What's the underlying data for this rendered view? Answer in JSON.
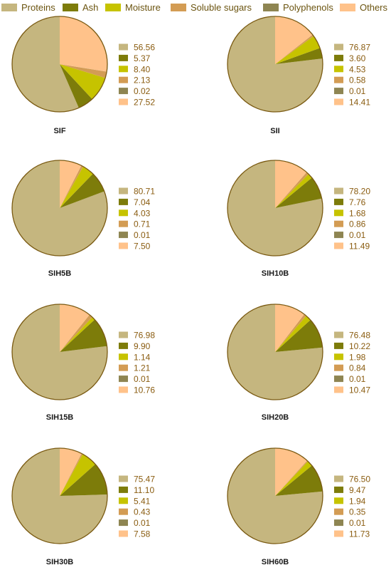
{
  "legend": [
    {
      "name": "Proteins",
      "color": "#c5b67f"
    },
    {
      "name": "Ash",
      "color": "#7d7c0a"
    },
    {
      "name": "Moisture",
      "color": "#c6c300"
    },
    {
      "name": "Soluble sugars",
      "color": "#d39c54"
    },
    {
      "name": "Polyphenols",
      "color": "#8e8552"
    },
    {
      "name": "Others",
      "color": "#ffc28a"
    }
  ],
  "chart_data": [
    {
      "type": "pie",
      "title": "SIF",
      "categories": [
        "Proteins",
        "Ash",
        "Moisture",
        "Soluble sugars",
        "Polyphenols",
        "Others"
      ],
      "values": [
        56.56,
        5.37,
        8.4,
        2.13,
        0.02,
        27.52
      ],
      "labels": [
        "56.56",
        "5.37",
        "8.40",
        "2.13",
        "0.02",
        "27.52"
      ]
    },
    {
      "type": "pie",
      "title": "SII",
      "categories": [
        "Proteins",
        "Ash",
        "Moisture",
        "Soluble sugars",
        "Polyphenols",
        "Others"
      ],
      "values": [
        76.87,
        3.6,
        4.53,
        0.58,
        0.01,
        14.41
      ],
      "labels": [
        "76.87",
        "3.60",
        "4.53",
        "0.58",
        "0.01",
        "14.41"
      ]
    },
    {
      "type": "pie",
      "title": "SIH5B",
      "categories": [
        "Proteins",
        "Ash",
        "Moisture",
        "Soluble sugars",
        "Polyphenols",
        "Others"
      ],
      "values": [
        80.71,
        7.04,
        4.03,
        0.71,
        0.01,
        7.5
      ],
      "labels": [
        "80.71",
        "7.04",
        "4.03",
        "0.71",
        "0.01",
        "7.50"
      ]
    },
    {
      "type": "pie",
      "title": "SIH10B",
      "categories": [
        "Proteins",
        "Ash",
        "Moisture",
        "Soluble sugars",
        "Polyphenols",
        "Others"
      ],
      "values": [
        78.2,
        7.76,
        1.68,
        0.86,
        0.01,
        11.49
      ],
      "labels": [
        "78.20",
        "7.76",
        "1.68",
        "0.86",
        "0.01",
        "11.49"
      ]
    },
    {
      "type": "pie",
      "title": "SIH15B",
      "categories": [
        "Proteins",
        "Ash",
        "Moisture",
        "Soluble sugars",
        "Polyphenols",
        "Others"
      ],
      "values": [
        76.98,
        9.9,
        1.14,
        1.21,
        0.01,
        10.76
      ],
      "labels": [
        "76.98",
        "9.90",
        "1.14",
        "1.21",
        "0.01",
        "10.76"
      ]
    },
    {
      "type": "pie",
      "title": "SIH20B",
      "categories": [
        "Proteins",
        "Ash",
        "Moisture",
        "Soluble sugars",
        "Polyphenols",
        "Others"
      ],
      "values": [
        76.48,
        10.22,
        1.98,
        0.84,
        0.01,
        10.47
      ],
      "labels": [
        "76.48",
        "10.22",
        "1.98",
        "0.84",
        "0.01",
        "10.47"
      ]
    },
    {
      "type": "pie",
      "title": "SIH30B",
      "categories": [
        "Proteins",
        "Ash",
        "Moisture",
        "Soluble sugars",
        "Polyphenols",
        "Others"
      ],
      "values": [
        75.47,
        11.1,
        5.41,
        0.43,
        0.01,
        7.58
      ],
      "labels": [
        "75.47",
        "11.10",
        "5.41",
        "0.43",
        "0.01",
        "7.58"
      ]
    },
    {
      "type": "pie",
      "title": "SIH60B",
      "categories": [
        "Proteins",
        "Ash",
        "Moisture",
        "Soluble sugars",
        "Polyphenols",
        "Others"
      ],
      "values": [
        76.5,
        9.47,
        1.94,
        0.35,
        0.01,
        11.73
      ],
      "labels": [
        "76.50",
        "9.47",
        "1.94",
        "0.35",
        "0.01",
        "11.73"
      ]
    }
  ]
}
